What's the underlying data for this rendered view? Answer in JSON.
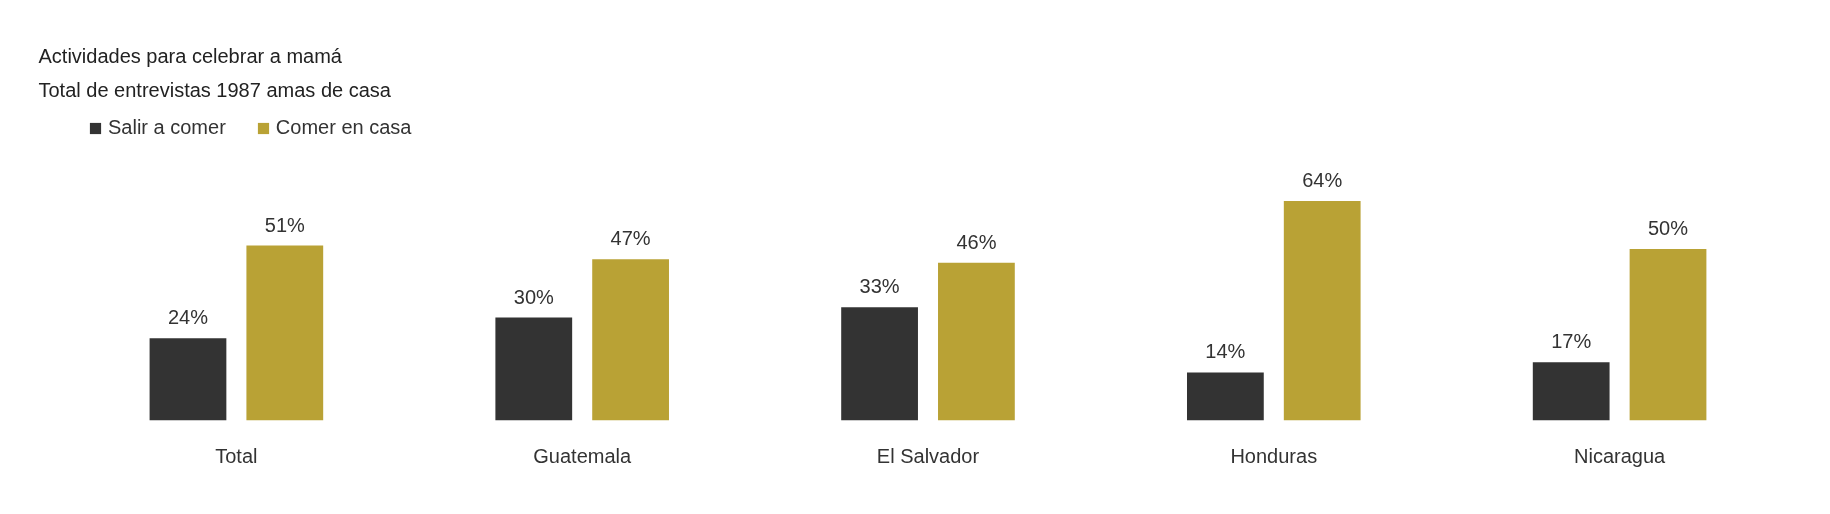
{
  "chart_data": {
    "type": "bar",
    "title": "Actividades para celebrar a mamá",
    "subtitle": "Total de entrevistas 1987 amas de casa",
    "categories": [
      "Total",
      "Guatemala",
      "El Salvador",
      "Honduras",
      "Nicaragua"
    ],
    "series": [
      {
        "name": "Salir a comer",
        "color": "#333333",
        "values": [
          24,
          30,
          33,
          14,
          17
        ],
        "value_labels": [
          "24%",
          "30%",
          "33%",
          "14%",
          "17%"
        ]
      },
      {
        "name": "Comer en casa",
        "color": "#b9a235",
        "values": [
          51,
          47,
          46,
          64,
          50
        ],
        "value_labels": [
          "51%",
          "47%",
          "46%",
          "64%",
          "50%"
        ]
      }
    ],
    "legend": "top left",
    "grid": false
  }
}
